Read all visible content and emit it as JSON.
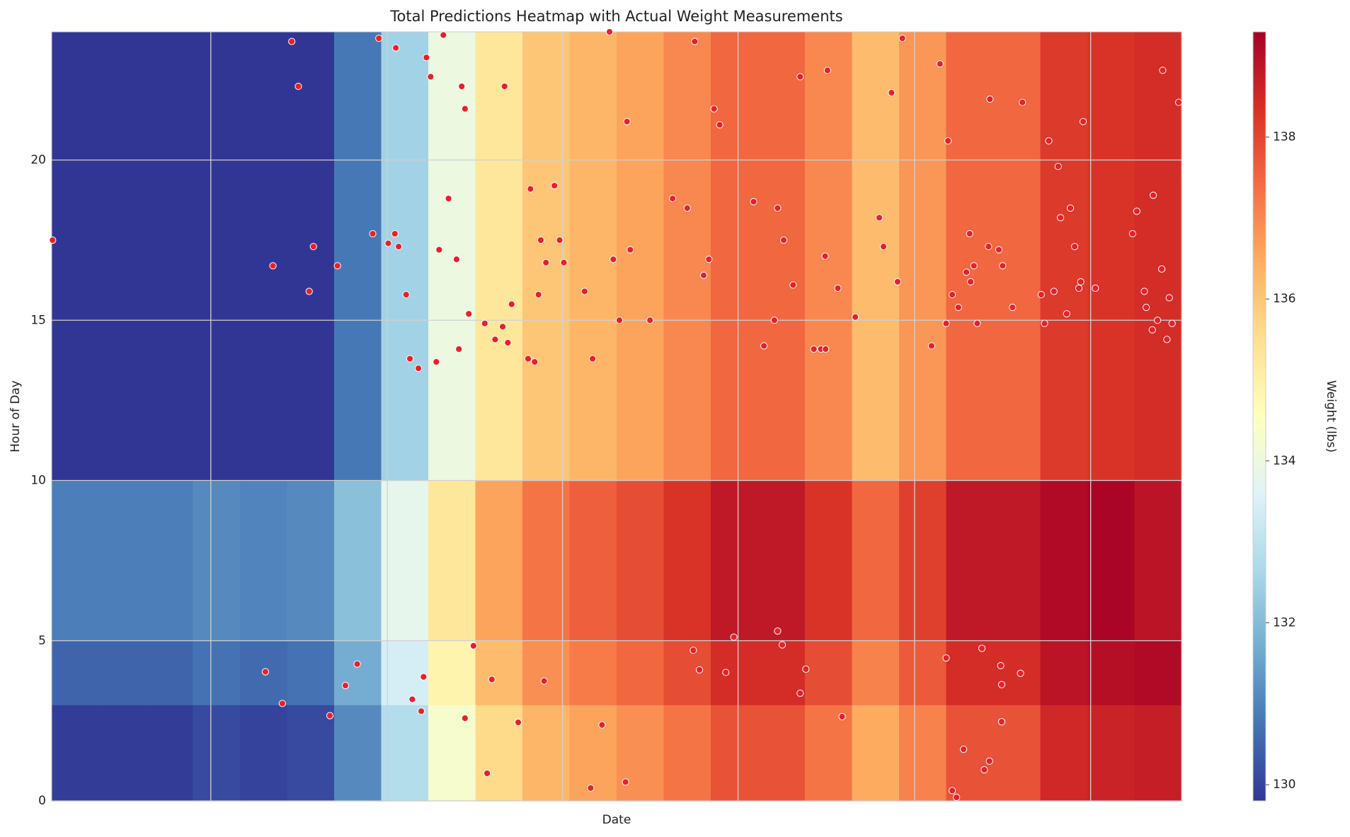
{
  "chart_data": {
    "type": "heatmap",
    "title": "Total Predictions Heatmap with Actual Weight Measurements",
    "xlabel": "Date",
    "ylabel": "Hour of Day",
    "colorbar_label": "Weight (lbs)",
    "colormap": "RdYlBu_r",
    "xlim": [
      0,
      24
    ],
    "ylim": [
      0,
      24
    ],
    "yticks": [
      0,
      5,
      10,
      15,
      20
    ],
    "xgrid": [
      3.38,
      7.13,
      10.85,
      14.58,
      18.33,
      22.07
    ],
    "grid": true,
    "heatmap": {
      "y_edges": [
        0,
        3,
        5,
        10,
        24
      ],
      "z": [
        [
          129.9,
          129.9,
          129.9,
          130.1,
          130.0,
          130.1,
          131.1,
          132.8,
          134.3,
          135.6,
          136.3,
          136.6,
          136.9,
          137.3,
          137.8,
          137.8,
          137.3,
          136.5,
          137.1,
          137.8,
          137.8,
          138.5,
          138.6,
          138.7
        ],
        [
          130.5,
          130.5,
          130.5,
          130.7,
          130.6,
          130.7,
          131.7,
          133.4,
          134.9,
          136.2,
          136.9,
          137.2,
          137.5,
          137.9,
          138.4,
          138.4,
          137.9,
          137.1,
          137.7,
          138.4,
          138.4,
          138.9,
          139.0,
          139.1
        ],
        [
          130.9,
          130.9,
          130.9,
          131.1,
          131.0,
          131.1,
          132.1,
          133.8,
          135.3,
          136.6,
          137.3,
          137.6,
          137.9,
          138.3,
          138.8,
          138.8,
          138.3,
          137.5,
          138.1,
          138.8,
          138.8,
          139.1,
          139.2,
          138.9
        ],
        [
          129.6,
          129.6,
          129.6,
          129.8,
          129.7,
          129.8,
          130.8,
          132.5,
          134.0,
          135.3,
          136.0,
          136.3,
          136.6,
          137.0,
          137.5,
          137.5,
          137.0,
          136.2,
          136.8,
          137.5,
          137.5,
          138.2,
          138.3,
          138.4
        ]
      ]
    },
    "clim": [
      129.8,
      139.3
    ],
    "cticks": [
      130,
      132,
      134,
      136,
      138
    ],
    "scatter": {
      "color": "#e8202a",
      "x": [
        0.02,
        4.54,
        4.7,
        4.9,
        5.1,
        5.24,
        5.47,
        5.56,
        5.91,
        6.07,
        6.24,
        6.49,
        6.82,
        6.95,
        7.15,
        7.29,
        7.31,
        7.37,
        7.53,
        7.61,
        7.66,
        7.79,
        7.85,
        7.9,
        7.96,
        8.05,
        8.17,
        8.23,
        8.32,
        8.43,
        8.6,
        8.65,
        8.71,
        8.78,
        8.78,
        8.86,
        8.96,
        9.2,
        9.25,
        9.35,
        9.42,
        9.58,
        9.62,
        9.69,
        9.77,
        9.91,
        10.12,
        10.17,
        10.26,
        10.34,
        10.39,
        10.46,
        10.5,
        10.68,
        10.79,
        10.88,
        11.32,
        11.45,
        11.49,
        11.69,
        11.85,
        11.93,
        12.06,
        12.19,
        12.22,
        12.29,
        12.71,
        13.19,
        13.5,
        13.63,
        13.66,
        13.76,
        13.85,
        13.96,
        14.07,
        14.19,
        14.32,
        14.49,
        14.91,
        15.13,
        15.35,
        15.42,
        15.42,
        15.52,
        15.55,
        15.75,
        15.9,
        15.9,
        16.02,
        16.19,
        16.34,
        16.44,
        16.43,
        16.48,
        16.7,
        16.79,
        17.07,
        17.58,
        17.67,
        17.84,
        17.97,
        18.07,
        18.69,
        18.87,
        19.0,
        19.0,
        19.04,
        19.13,
        19.13,
        19.22,
        19.26,
        19.37,
        19.43,
        19.5,
        19.52,
        19.59,
        19.66,
        19.76,
        19.81,
        19.9,
        19.92,
        19.93,
        20.12,
        20.16,
        20.18,
        20.18,
        20.2,
        20.41,
        20.58,
        20.62,
        21.02,
        21.09,
        21.18,
        21.29,
        21.38,
        21.43,
        21.56,
        21.64,
        21.73,
        21.82,
        21.86,
        21.91,
        22.17,
        22.96,
        23.05,
        23.21,
        23.25,
        23.4,
        23.38,
        23.49,
        23.58,
        23.6,
        23.69,
        23.74,
        23.8,
        23.94
      ],
      "y": [
        17.5,
        4.03,
        16.7,
        3.04,
        23.7,
        22.3,
        15.9,
        17.3,
        2.66,
        16.7,
        3.6,
        4.27,
        17.7,
        23.8,
        17.4,
        17.7,
        23.5,
        17.3,
        15.8,
        13.8,
        3.17,
        13.5,
        2.8,
        3.87,
        23.2,
        22.6,
        13.7,
        17.2,
        23.9,
        18.8,
        16.9,
        14.1,
        22.3,
        21.6,
        2.58,
        15.2,
        4.84,
        14.9,
        0.86,
        3.79,
        14.4,
        14.8,
        22.3,
        14.3,
        15.5,
        2.45,
        13.8,
        19.1,
        13.7,
        15.8,
        17.5,
        3.74,
        16.8,
        19.2,
        17.5,
        16.8,
        15.9,
        0.4,
        13.8,
        2.37,
        24.0,
        16.9,
        15.0,
        0.59,
        21.2,
        17.2,
        15.0,
        18.8,
        18.5,
        4.7,
        23.7,
        4.09,
        16.4,
        16.9,
        21.6,
        21.1,
        4.01,
        5.11,
        18.7,
        14.2,
        15.0,
        18.5,
        5.3,
        4.87,
        17.5,
        16.1,
        22.6,
        3.36,
        4.11,
        14.1,
        14.1,
        14.1,
        17.0,
        22.8,
        16.0,
        2.63,
        15.1,
        18.2,
        17.3,
        22.1,
        16.2,
        23.8,
        14.2,
        23.0,
        4.46,
        14.9,
        20.6,
        0.32,
        15.8,
        0.11,
        15.4,
        1.61,
        16.5,
        17.7,
        16.2,
        16.7,
        14.9,
        4.76,
        0.97,
        17.3,
        1.24,
        21.9,
        17.2,
        4.22,
        3.63,
        2.47,
        16.7,
        15.4,
        3.98,
        21.8,
        15.8,
        14.9,
        20.6,
        15.9,
        19.8,
        18.2,
        15.2,
        18.5,
        17.3,
        16.0,
        16.2,
        21.2,
        16.0,
        17.7,
        18.4,
        15.9,
        15.4,
        18.9,
        14.7,
        15.0,
        16.6,
        22.8,
        14.4,
        15.7,
        14.9,
        21.8
      ]
    }
  }
}
